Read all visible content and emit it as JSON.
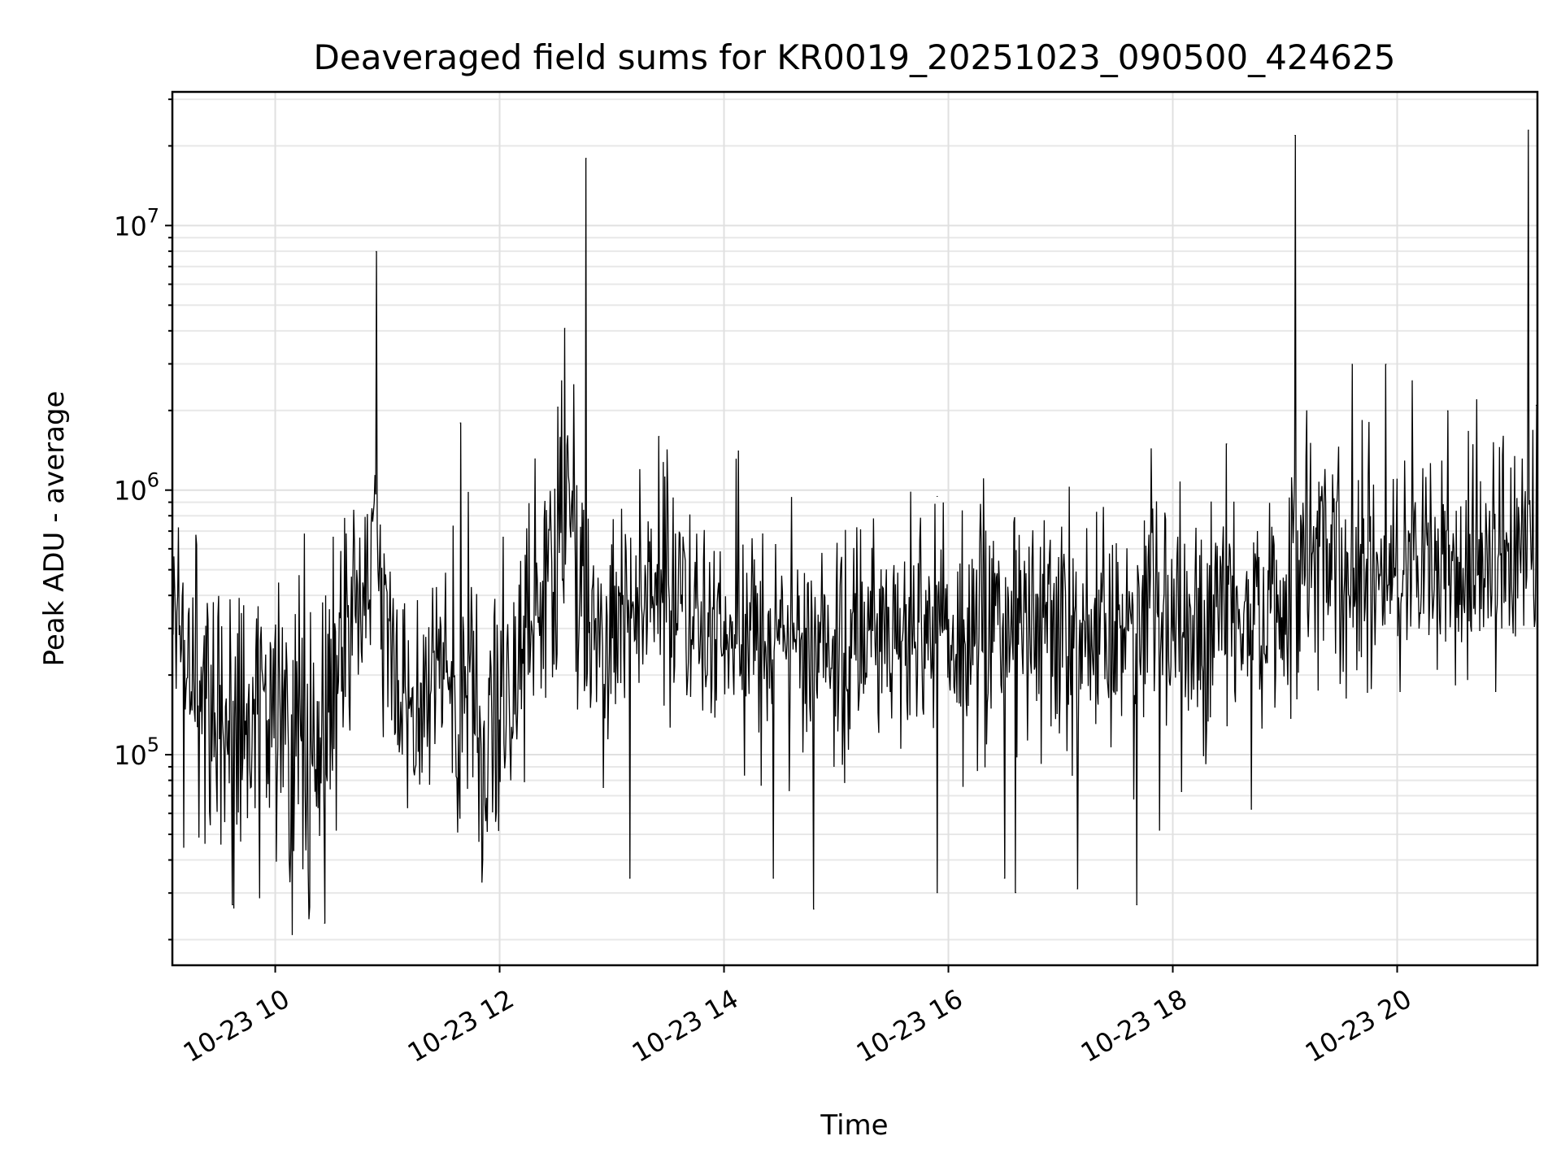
{
  "chart_data": {
    "type": "line",
    "title": "Deaveraged field sums for KR0019_20251023_090500_424625",
    "xlabel": "Time",
    "ylabel": "Peak ADU - average",
    "yscale": "log",
    "xlim_hours": [
      9.083,
      21.25
    ],
    "ylim": [
      16000,
      32000000
    ],
    "grid": "on",
    "line_color": "#000000",
    "x_ticks": [
      {
        "value": 10,
        "label": "10-23 10"
      },
      {
        "value": 12,
        "label": "10-23 12"
      },
      {
        "value": 14,
        "label": "10-23 14"
      },
      {
        "value": 16,
        "label": "10-23 16"
      },
      {
        "value": 18,
        "label": "10-23 18"
      },
      {
        "value": 20,
        "label": "10-23 20"
      }
    ],
    "y_ticks": [
      {
        "value": 100000,
        "base": "10",
        "exp": "5"
      },
      {
        "value": 1000000,
        "base": "10",
        "exp": "6"
      },
      {
        "value": 10000000,
        "base": "10",
        "exp": "7"
      }
    ],
    "series": [
      {
        "name": "Peak ADU - average",
        "envelope": [
          {
            "t": 9.08,
            "level": 260000,
            "spread": 0.45
          },
          {
            "t": 9.5,
            "level": 140000,
            "spread": 0.55
          },
          {
            "t": 10.0,
            "level": 130000,
            "spread": 0.6
          },
          {
            "t": 10.45,
            "level": 90000,
            "spread": 0.6
          },
          {
            "t": 10.65,
            "level": 350000,
            "spread": 0.45
          },
          {
            "t": 10.85,
            "level": 600000,
            "spread": 0.45
          },
          {
            "t": 11.1,
            "level": 200000,
            "spread": 0.45
          },
          {
            "t": 11.5,
            "level": 190000,
            "spread": 0.45
          },
          {
            "t": 11.85,
            "level": 110000,
            "spread": 0.45
          },
          {
            "t": 12.2,
            "level": 280000,
            "spread": 0.45
          },
          {
            "t": 12.55,
            "level": 700000,
            "spread": 0.6
          },
          {
            "t": 12.9,
            "level": 280000,
            "spread": 0.4
          },
          {
            "t": 13.45,
            "level": 450000,
            "spread": 0.45
          },
          {
            "t": 14.0,
            "level": 280000,
            "spread": 0.42
          },
          {
            "t": 15.0,
            "level": 270000,
            "spread": 0.42
          },
          {
            "t": 16.0,
            "level": 290000,
            "spread": 0.42
          },
          {
            "t": 17.0,
            "level": 290000,
            "spread": 0.45
          },
          {
            "t": 18.0,
            "level": 300000,
            "spread": 0.42
          },
          {
            "t": 18.9,
            "level": 350000,
            "spread": 0.4
          },
          {
            "t": 19.1,
            "level": 550000,
            "spread": 0.45
          },
          {
            "t": 20.0,
            "level": 480000,
            "spread": 0.42
          },
          {
            "t": 21.25,
            "level": 560000,
            "spread": 0.38
          }
        ],
        "spikes": [
          {
            "t": 10.9,
            "value": 8000000
          },
          {
            "t": 11.65,
            "value": 1800000
          },
          {
            "t": 12.58,
            "value": 4100000
          },
          {
            "t": 12.77,
            "value": 18000000
          },
          {
            "t": 13.42,
            "value": 1600000
          },
          {
            "t": 15.9,
            "value": 950000
          },
          {
            "t": 18.48,
            "value": 1500000
          },
          {
            "t": 19.09,
            "value": 22000000
          },
          {
            "t": 19.6,
            "value": 3000000
          },
          {
            "t": 19.9,
            "value": 3000000
          },
          {
            "t": 20.45,
            "value": 2000000
          },
          {
            "t": 21.17,
            "value": 23000000
          },
          {
            "t": 21.24,
            "value": 2100000
          }
        ],
        "dips": [
          {
            "t": 9.62,
            "value": 27000
          },
          {
            "t": 10.13,
            "value": 33000
          },
          {
            "t": 10.44,
            "value": 23000
          },
          {
            "t": 11.85,
            "value": 40000
          },
          {
            "t": 13.16,
            "value": 34000
          },
          {
            "t": 14.44,
            "value": 34000
          },
          {
            "t": 14.8,
            "value": 26000
          },
          {
            "t": 15.9,
            "value": 30000
          },
          {
            "t": 16.5,
            "value": 34000
          },
          {
            "t": 16.6,
            "value": 30000
          },
          {
            "t": 17.15,
            "value": 31000
          },
          {
            "t": 17.68,
            "value": 27000
          },
          {
            "t": 18.7,
            "value": 62000
          }
        ]
      }
    ]
  }
}
